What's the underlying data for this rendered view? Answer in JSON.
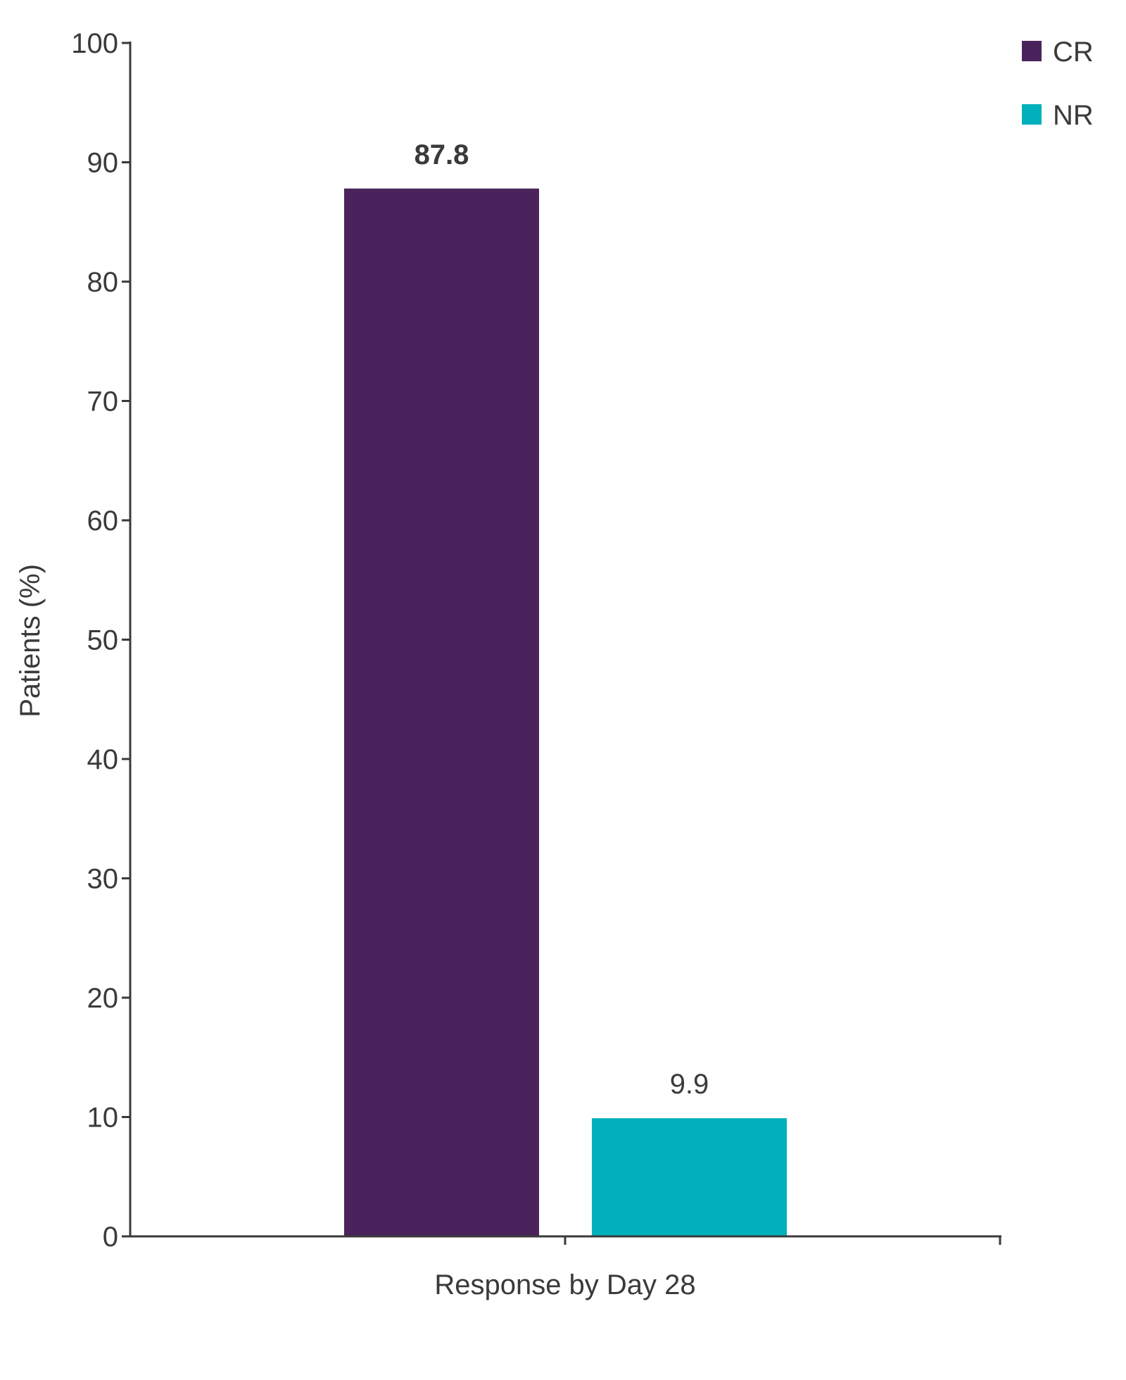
{
  "chart_data": {
    "type": "bar",
    "title": "",
    "xlabel": "",
    "ylabel": "Patients (%)",
    "ylim": [
      0,
      100
    ],
    "yticks": [
      0,
      10,
      20,
      30,
      40,
      50,
      60,
      70,
      80,
      90,
      100
    ],
    "categories": [
      "Response by Day 28"
    ],
    "series": [
      {
        "name": "CR",
        "values": [
          87.8
        ],
        "label": "87.8",
        "color": "#4a235c",
        "bold_label": true
      },
      {
        "name": "NR",
        "values": [
          9.9
        ],
        "label": "9.9",
        "color": "#00b0bd",
        "bold_label": false
      }
    ],
    "legend": "top-right",
    "grid": false
  }
}
